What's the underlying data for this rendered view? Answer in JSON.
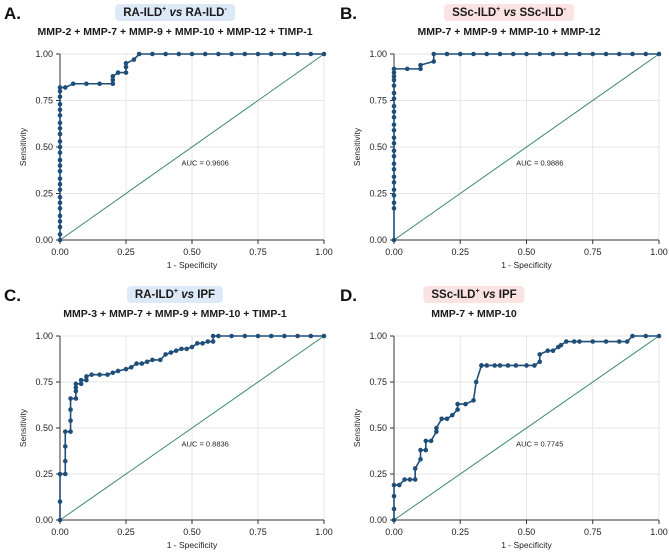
{
  "panels": [
    {
      "letter": "A.",
      "group1": "RA-ILD",
      "sup1": "+",
      "vs": "vs",
      "group2": "RA-ILD",
      "sup2": "-",
      "subtitle": "MMP-2 + MMP-7 + MMP-9 + MMP-10 + MMP-12 + TIMP-1",
      "pill_color": "blue"
    },
    {
      "letter": "B.",
      "group1": "SSc-ILD",
      "sup1": "+",
      "vs": "vs",
      "group2": "SSc-ILD",
      "sup2": "-",
      "subtitle": "MMP-7 + MMP-9 + MMP-10 + MMP-12",
      "pill_color": "pink"
    },
    {
      "letter": "C.",
      "group1": "RA-ILD",
      "sup1": "+",
      "vs": "vs",
      "group2": "IPF",
      "sup2": "",
      "subtitle": "MMP-3 + MMP-7 + MMP-9 + MMP-10 + TIMP-1",
      "pill_color": "blue"
    },
    {
      "letter": "D.",
      "group1": "SSc-ILD",
      "sup1": "+",
      "vs": "vs",
      "group2": "IPF",
      "sup2": "",
      "subtitle": "MMP-7 + MMP-10",
      "pill_color": "pink"
    }
  ],
  "chart_data": [
    {
      "type": "line",
      "title": "RA-ILD+ vs RA-ILD-",
      "xlabel": "1 - Specificity",
      "ylabel": "Sensitivity",
      "xlim": [
        0,
        1
      ],
      "ylim": [
        0,
        1
      ],
      "x_ticks": [
        "0.00",
        "0.25",
        "0.50",
        "0.75",
        "1.00"
      ],
      "y_ticks": [
        "0.00",
        "0.25",
        "0.50",
        "0.75",
        "1.00"
      ],
      "annotation": "AUC = 0.9606",
      "series": [
        {
          "name": "ROC",
          "x": [
            0,
            0,
            0,
            0,
            0,
            0,
            0,
            0,
            0,
            0,
            0,
            0,
            0,
            0,
            0,
            0,
            0,
            0,
            0,
            0,
            0,
            0,
            0,
            0,
            0,
            0,
            0.02,
            0.05,
            0.1,
            0.15,
            0.2,
            0.2,
            0.2,
            0.22,
            0.25,
            0.25,
            0.25,
            0.28,
            0.3,
            0.35,
            0.4,
            0.45,
            0.5,
            0.55,
            0.6,
            0.65,
            0.7,
            0.75,
            0.8,
            0.85,
            0.9,
            0.95,
            1.0
          ],
          "y": [
            0,
            0.03,
            0.07,
            0.1,
            0.13,
            0.17,
            0.2,
            0.23,
            0.27,
            0.3,
            0.33,
            0.37,
            0.4,
            0.43,
            0.47,
            0.5,
            0.53,
            0.57,
            0.6,
            0.63,
            0.67,
            0.7,
            0.73,
            0.77,
            0.8,
            0.82,
            0.82,
            0.84,
            0.84,
            0.84,
            0.84,
            0.86,
            0.88,
            0.9,
            0.9,
            0.93,
            0.95,
            0.97,
            1,
            1,
            1,
            1,
            1,
            1,
            1,
            1,
            1,
            1,
            1,
            1,
            1,
            1,
            1
          ]
        }
      ]
    },
    {
      "type": "line",
      "title": "SSc-ILD+ vs SSc-ILD-",
      "xlabel": "1 - Specificity",
      "ylabel": "Sensitivity",
      "xlim": [
        0,
        1
      ],
      "ylim": [
        0,
        1
      ],
      "x_ticks": [
        "0.00",
        "0.25",
        "0.50",
        "0.75",
        "1.00"
      ],
      "y_ticks": [
        "0.00",
        "0.25",
        "0.50",
        "0.75",
        "1.00"
      ],
      "annotation": "AUC = 0.9886",
      "series": [
        {
          "name": "ROC",
          "x": [
            0,
            0,
            0,
            0,
            0,
            0,
            0,
            0,
            0,
            0,
            0,
            0,
            0,
            0,
            0,
            0,
            0,
            0,
            0,
            0,
            0,
            0,
            0,
            0,
            0,
            0.05,
            0.1,
            0.1,
            0.15,
            0.15,
            0.2,
            0.25,
            0.3,
            0.35,
            0.4,
            0.45,
            0.5,
            0.55,
            0.6,
            0.65,
            0.7,
            0.75,
            0.8,
            0.85,
            0.9,
            0.95,
            1.0
          ],
          "y": [
            0,
            0.17,
            0.2,
            0.24,
            0.27,
            0.31,
            0.34,
            0.38,
            0.41,
            0.45,
            0.48,
            0.52,
            0.55,
            0.59,
            0.62,
            0.66,
            0.69,
            0.72,
            0.76,
            0.79,
            0.83,
            0.86,
            0.88,
            0.9,
            0.92,
            0.92,
            0.92,
            0.94,
            0.96,
            1,
            1,
            1,
            1,
            1,
            1,
            1,
            1,
            1,
            1,
            1,
            1,
            1,
            1,
            1,
            1,
            1,
            1
          ]
        }
      ]
    },
    {
      "type": "line",
      "title": "RA-ILD+ vs IPF",
      "xlabel": "1 - Specificity",
      "ylabel": "Sensitivity",
      "xlim": [
        0,
        1
      ],
      "ylim": [
        0,
        1
      ],
      "x_ticks": [
        "0.00",
        "0.25",
        "0.50",
        "0.75",
        "1.00"
      ],
      "y_ticks": [
        "0.00",
        "0.25",
        "0.50",
        "0.75",
        "1.00"
      ],
      "annotation": "AUC = 0.8836",
      "series": [
        {
          "name": "ROC",
          "x": [
            0,
            0,
            0,
            0.02,
            0.02,
            0.02,
            0.02,
            0.04,
            0.04,
            0.04,
            0.04,
            0.06,
            0.06,
            0.06,
            0.06,
            0.08,
            0.08,
            0.1,
            0.1,
            0.12,
            0.15,
            0.18,
            0.2,
            0.22,
            0.25,
            0.27,
            0.29,
            0.31,
            0.33,
            0.35,
            0.38,
            0.4,
            0.42,
            0.44,
            0.46,
            0.48,
            0.5,
            0.52,
            0.54,
            0.56,
            0.58,
            0.58,
            0.6,
            0.65,
            0.7,
            0.75,
            0.8,
            0.85,
            0.9,
            0.95,
            1.0
          ],
          "y": [
            0,
            0.1,
            0.25,
            0.25,
            0.32,
            0.4,
            0.48,
            0.48,
            0.54,
            0.6,
            0.66,
            0.66,
            0.7,
            0.72,
            0.74,
            0.74,
            0.76,
            0.76,
            0.78,
            0.79,
            0.79,
            0.79,
            0.8,
            0.81,
            0.82,
            0.83,
            0.85,
            0.85,
            0.86,
            0.87,
            0.87,
            0.9,
            0.91,
            0.92,
            0.93,
            0.93,
            0.94,
            0.96,
            0.96,
            0.97,
            0.97,
            1,
            1,
            1,
            1,
            1,
            1,
            1,
            1,
            1,
            1
          ]
        }
      ]
    },
    {
      "type": "line",
      "title": "SSc-ILD+ vs IPF",
      "xlabel": "1 - Specificity",
      "ylabel": "Sensitivity",
      "xlim": [
        0,
        1
      ],
      "ylim": [
        0,
        1
      ],
      "x_ticks": [
        "0.00",
        "0.25",
        "0.50",
        "0.75",
        "1.00"
      ],
      "y_ticks": [
        "0.00",
        "0.25",
        "0.50",
        "0.75",
        "1.00"
      ],
      "annotation": "AUC = 0.7745",
      "series": [
        {
          "name": "ROC",
          "x": [
            0,
            0,
            0,
            0,
            0.02,
            0.04,
            0.06,
            0.08,
            0.08,
            0.1,
            0.1,
            0.12,
            0.12,
            0.14,
            0.16,
            0.16,
            0.18,
            0.2,
            0.22,
            0.24,
            0.24,
            0.27,
            0.3,
            0.31,
            0.33,
            0.33,
            0.35,
            0.38,
            0.4,
            0.43,
            0.46,
            0.5,
            0.53,
            0.55,
            0.55,
            0.58,
            0.6,
            0.62,
            0.63,
            0.65,
            0.68,
            0.7,
            0.75,
            0.8,
            0.85,
            0.88,
            0.9,
            0.95,
            1.0
          ],
          "y": [
            0,
            0.06,
            0.13,
            0.19,
            0.19,
            0.22,
            0.22,
            0.22,
            0.28,
            0.33,
            0.38,
            0.38,
            0.43,
            0.43,
            0.48,
            0.5,
            0.55,
            0.55,
            0.57,
            0.6,
            0.63,
            0.63,
            0.65,
            0.75,
            0.84,
            0.84,
            0.84,
            0.84,
            0.84,
            0.84,
            0.84,
            0.84,
            0.84,
            0.86,
            0.9,
            0.92,
            0.92,
            0.94,
            0.95,
            0.97,
            0.97,
            0.97,
            0.97,
            0.97,
            0.97,
            0.97,
            1,
            1,
            1
          ]
        }
      ]
    }
  ]
}
